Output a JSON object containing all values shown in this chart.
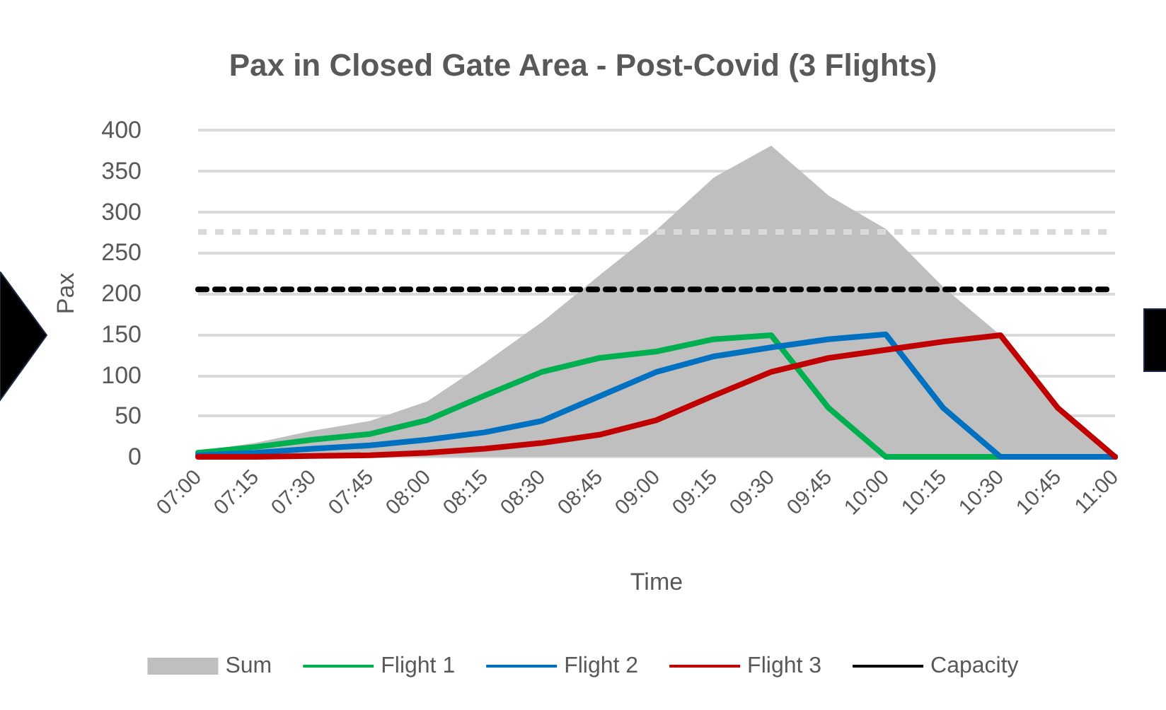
{
  "chart_data": {
    "type": "line",
    "title": "Pax in Closed Gate Area - Post-Covid (3 Flights)",
    "xlabel": "Time",
    "ylabel": "Pax",
    "categories": [
      "07:00",
      "07:15",
      "07:30",
      "07:45",
      "08:00",
      "08:15",
      "08:30",
      "08:45",
      "09:00",
      "09:15",
      "09:30",
      "09:45",
      "10:00",
      "10:15",
      "10:30",
      "10:45",
      "11:00"
    ],
    "series": [
      {
        "name": "Sum",
        "type": "area",
        "color": "#bfbfbf",
        "values": [
          7,
          17,
          32,
          44,
          68,
          115,
          165,
          222,
          278,
          342,
          381,
          320,
          279,
          208,
          149,
          60,
          0
        ]
      },
      {
        "name": "Flight 1",
        "color": "#00b050",
        "values": [
          5,
          12,
          21,
          28,
          45,
          75,
          104,
          121,
          129,
          144,
          149,
          60,
          0,
          0,
          0,
          0,
          0
        ]
      },
      {
        "name": "Flight 2",
        "color": "#0070c0",
        "values": [
          2,
          5,
          10,
          14,
          21,
          30,
          44,
          74,
          104,
          123,
          134,
          144,
          150,
          60,
          0,
          0,
          0
        ]
      },
      {
        "name": "Flight 3",
        "color": "#c00000",
        "values": [
          0,
          0,
          1,
          2,
          5,
          10,
          17,
          27,
          45,
          75,
          104,
          121,
          131,
          141,
          149,
          60,
          0
        ]
      },
      {
        "name": "Capacity",
        "color": "#000000",
        "line_style": "dashed",
        "values": [
          205,
          205,
          205,
          205,
          205,
          205,
          205,
          205,
          205,
          205,
          205,
          205,
          205,
          205,
          205,
          205,
          205
        ]
      }
    ],
    "ref_lines": [
      {
        "axis": "y",
        "value": 276,
        "label": null,
        "color": "#d9d9d9",
        "line_style": "dashed"
      }
    ],
    "ylim": [
      0,
      400
    ],
    "yticks": [
      0,
      50,
      100,
      150,
      200,
      250,
      300,
      350,
      400
    ],
    "grid": "y",
    "legend": "bottom",
    "marker": "none"
  }
}
